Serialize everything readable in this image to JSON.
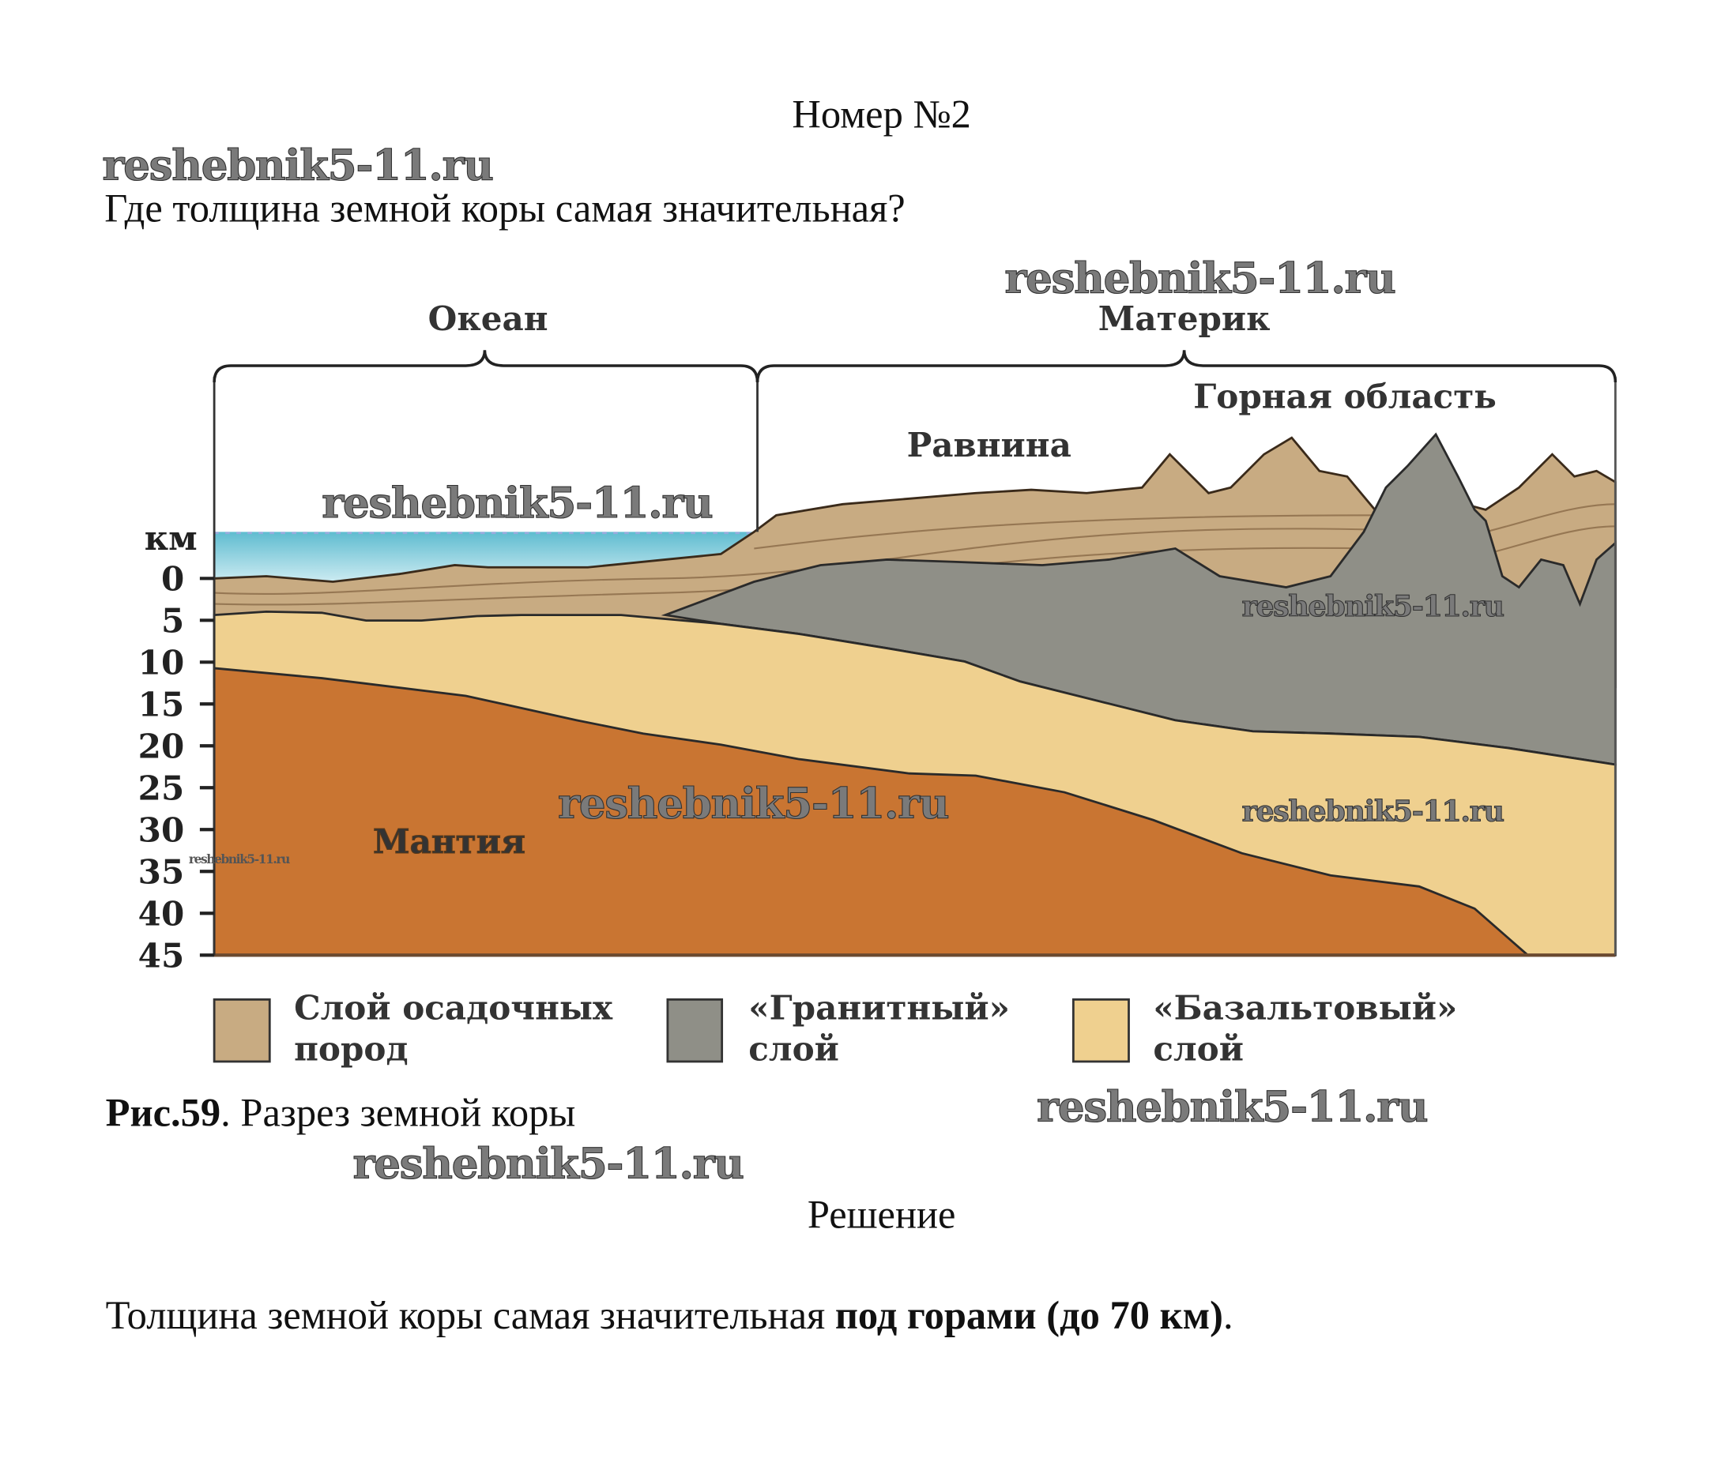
{
  "header": {
    "title": "Номер №2"
  },
  "question": "Где толщина земной коры самая значительная?",
  "figure": {
    "ocean_label": "Океан",
    "continent_label": "Материк",
    "plain_label": "Равнина",
    "mountain_label": "Горная область",
    "mantle_label": "Мантия",
    "axis_unit": "км",
    "axis_ticks": [
      "0",
      "5",
      "10",
      "15",
      "20",
      "25",
      "30",
      "35",
      "40",
      "45"
    ],
    "legend": [
      {
        "line1": "Слой осадочных",
        "line2": "пород",
        "color": "#c8ab82"
      },
      {
        "line1": "«Гранитный»",
        "line2": "слой",
        "color": "#8f8f87"
      },
      {
        "line1": "«Базальтовый»",
        "line2": "слой",
        "color": "#efd08f"
      }
    ],
    "caption_bold": "Рис.59",
    "caption_rest": ". Разрез земной коры"
  },
  "solution_title": "Решение",
  "answer": {
    "prefix": "Толщина земной коры самая значительная ",
    "bold": "под горами (до 70 км)",
    "suffix": "."
  },
  "watermarks": [
    "reshebnik5-11.ru",
    "reshebnik5-11.ru",
    "reshebnik5-11.ru",
    "reshebnik5-11.ru",
    "reshebnik5-11.ru",
    "reshebnik5-11.ru",
    "reshebnik5-11.ru",
    "reshebnik5-11.ru"
  ],
  "colors": {
    "sediment": "#c8ab82",
    "granite": "#8f8f87",
    "basalt": "#efd08f",
    "mantle": "#c97532",
    "water": "#7ccbdc"
  }
}
